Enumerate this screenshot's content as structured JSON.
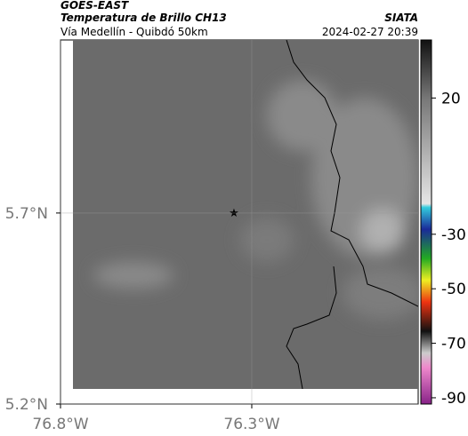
{
  "header": {
    "satellite": "GOES-EAST",
    "product": "Temperatura de Brillo CH13",
    "region": "Vía Medellín - Quibdó 50km",
    "source": "SIATA",
    "datetime": "2024-02-27 20:39"
  },
  "map": {
    "lon_range": [
      -76.8,
      -75.865
    ],
    "lat_range": [
      5.2,
      6.153
    ],
    "lon_ticks": [
      {
        "value": -76.8,
        "label": "76.8°W"
      },
      {
        "value": -76.3,
        "label": "76.3°W"
      }
    ],
    "lat_ticks": [
      {
        "value": 5.2,
        "label": "5.2°N"
      },
      {
        "value": 5.7,
        "label": "5.7°N"
      }
    ],
    "colorbar": {
      "range": [
        -92.3,
        41.3
      ],
      "ticks": [
        20,
        -30,
        -50,
        -70,
        -90
      ]
    }
  }
}
